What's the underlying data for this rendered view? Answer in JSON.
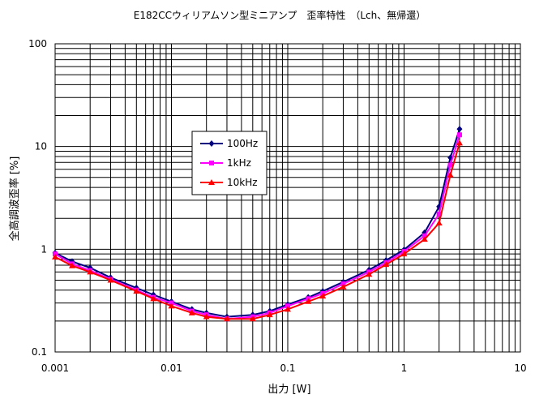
{
  "chart_data": {
    "type": "line",
    "title": "E182CCウィリアムソン型ミニアンプ　歪率特性　（Lch、無帰還）",
    "xlabel": "出力 [W]",
    "ylabel": "全高調波歪率 [%]",
    "x_scale": "log",
    "y_scale": "log",
    "xlim": [
      0.001,
      10
    ],
    "ylim": [
      0.1,
      100
    ],
    "x_ticks": [
      "0.001",
      "0.01",
      "0.1",
      "1",
      "10"
    ],
    "y_ticks": [
      "0.1",
      "1",
      "10",
      "100"
    ],
    "grid": true,
    "legend_position": "inside-left-center",
    "series": [
      {
        "name": "100Hz",
        "color": "#000080",
        "marker": "diamond",
        "x": [
          0.001,
          0.0014,
          0.002,
          0.003,
          0.005,
          0.007,
          0.01,
          0.015,
          0.02,
          0.03,
          0.05,
          0.07,
          0.1,
          0.15,
          0.2,
          0.3,
          0.5,
          0.7,
          1.0,
          1.5,
          2.0,
          2.5,
          3.0
        ],
        "y": [
          0.92,
          0.76,
          0.66,
          0.53,
          0.42,
          0.36,
          0.31,
          0.26,
          0.24,
          0.22,
          0.23,
          0.25,
          0.29,
          0.34,
          0.39,
          0.48,
          0.63,
          0.78,
          0.99,
          1.45,
          2.6,
          7.8,
          14.8
        ]
      },
      {
        "name": "1kHz",
        "color": "#FF00FF",
        "marker": "square",
        "x": [
          0.001,
          0.0014,
          0.002,
          0.003,
          0.005,
          0.007,
          0.01,
          0.015,
          0.02,
          0.03,
          0.05,
          0.07,
          0.1,
          0.15,
          0.2,
          0.3,
          0.5,
          0.7,
          1.0,
          1.5,
          2.0,
          2.5,
          3.0
        ],
        "y": [
          0.9,
          0.72,
          0.62,
          0.51,
          0.4,
          0.34,
          0.3,
          0.25,
          0.23,
          0.21,
          0.22,
          0.24,
          0.28,
          0.33,
          0.37,
          0.46,
          0.6,
          0.74,
          0.95,
          1.35,
          2.2,
          6.6,
          13.0
        ]
      },
      {
        "name": "10kHz",
        "color": "#FF0000",
        "marker": "triangle",
        "x": [
          0.001,
          0.0014,
          0.002,
          0.003,
          0.005,
          0.007,
          0.01,
          0.015,
          0.02,
          0.03,
          0.05,
          0.07,
          0.1,
          0.15,
          0.2,
          0.3,
          0.5,
          0.7,
          1.0,
          1.5,
          2.0,
          2.5,
          3.0
        ],
        "y": [
          0.84,
          0.69,
          0.6,
          0.5,
          0.39,
          0.33,
          0.28,
          0.24,
          0.22,
          0.21,
          0.21,
          0.23,
          0.26,
          0.31,
          0.35,
          0.43,
          0.57,
          0.71,
          0.9,
          1.25,
          1.8,
          5.3,
          10.8
        ]
      }
    ]
  }
}
